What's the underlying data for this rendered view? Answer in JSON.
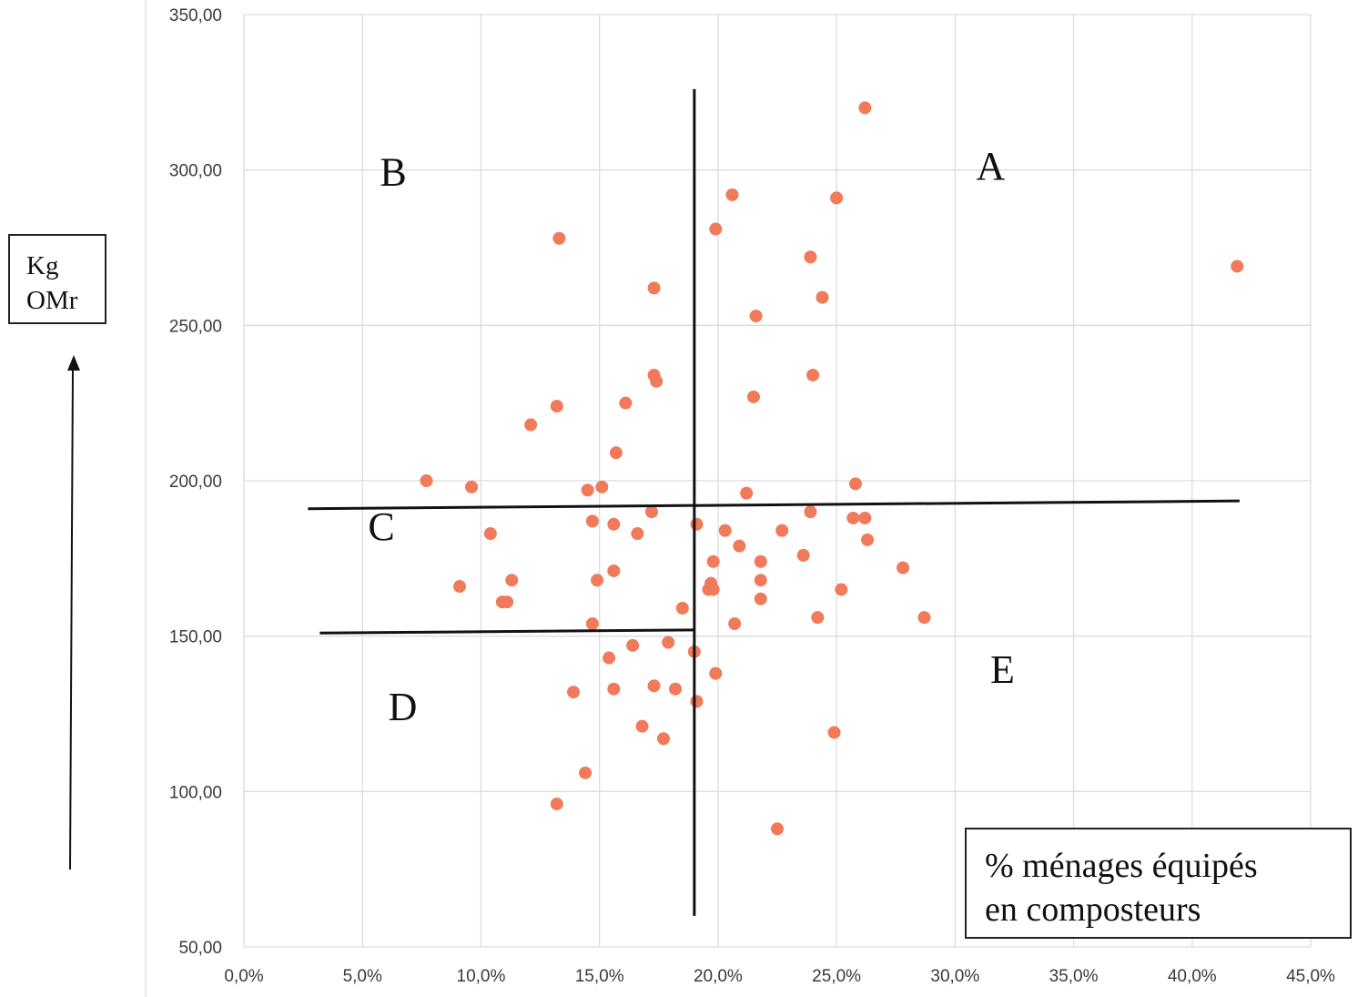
{
  "chart_data": {
    "type": "scatter",
    "title": "",
    "xlabel": [
      "% ménages équipés",
      "en composteurs"
    ],
    "ylabel": [
      "Kg",
      "OMr"
    ],
    "xlim": [
      0,
      45
    ],
    "ylim": [
      50,
      350
    ],
    "x_ticks": [
      {
        "value": 0,
        "label": "0,0%"
      },
      {
        "value": 5,
        "label": "5,0%"
      },
      {
        "value": 10,
        "label": "10,0%"
      },
      {
        "value": 15,
        "label": "15,0%"
      },
      {
        "value": 20,
        "label": "20,0%"
      },
      {
        "value": 25,
        "label": "25,0%"
      },
      {
        "value": 30,
        "label": "30,0%"
      },
      {
        "value": 35,
        "label": "35,0%"
      },
      {
        "value": 40,
        "label": "40,0%"
      },
      {
        "value": 45,
        "label": "45,0%"
      }
    ],
    "y_ticks": [
      {
        "value": 50,
        "label": "50,00"
      },
      {
        "value": 100,
        "label": "100,00"
      },
      {
        "value": 150,
        "label": "150,00"
      },
      {
        "value": 200,
        "label": "200,00"
      },
      {
        "value": 250,
        "label": "250,00"
      },
      {
        "value": 300,
        "label": "300,00"
      },
      {
        "value": 350,
        "label": "350,00"
      }
    ],
    "grid": true,
    "point_color": "#f07a5a",
    "points": [
      [
        26.2,
        320
      ],
      [
        20.6,
        292
      ],
      [
        25.0,
        291
      ],
      [
        19.9,
        281
      ],
      [
        13.3,
        278
      ],
      [
        23.9,
        272
      ],
      [
        41.9,
        269
      ],
      [
        24.4,
        259
      ],
      [
        17.3,
        262
      ],
      [
        21.6,
        253
      ],
      [
        17.3,
        234
      ],
      [
        17.4,
        232
      ],
      [
        24.0,
        234
      ],
      [
        21.5,
        227
      ],
      [
        13.2,
        224
      ],
      [
        16.1,
        225
      ],
      [
        12.1,
        218
      ],
      [
        15.7,
        209
      ],
      [
        7.7,
        200
      ],
      [
        9.6,
        198
      ],
      [
        15.1,
        198
      ],
      [
        14.5,
        197
      ],
      [
        21.2,
        196
      ],
      [
        25.8,
        199
      ],
      [
        23.9,
        190
      ],
      [
        17.2,
        190
      ],
      [
        14.7,
        187
      ],
      [
        15.6,
        186
      ],
      [
        19.1,
        186
      ],
      [
        25.7,
        188
      ],
      [
        26.2,
        188
      ],
      [
        10.4,
        183
      ],
      [
        16.6,
        183
      ],
      [
        20.3,
        184
      ],
      [
        22.7,
        184
      ],
      [
        26.3,
        181
      ],
      [
        20.9,
        179
      ],
      [
        23.6,
        176
      ],
      [
        19.8,
        174
      ],
      [
        21.8,
        174
      ],
      [
        15.6,
        171
      ],
      [
        27.8,
        172
      ],
      [
        11.3,
        168
      ],
      [
        14.9,
        168
      ],
      [
        21.8,
        168
      ],
      [
        19.7,
        167
      ],
      [
        9.1,
        166
      ],
      [
        19.6,
        165
      ],
      [
        19.8,
        165
      ],
      [
        25.2,
        165
      ],
      [
        10.9,
        161
      ],
      [
        11.1,
        161
      ],
      [
        21.8,
        162
      ],
      [
        18.5,
        159
      ],
      [
        24.2,
        156
      ],
      [
        28.7,
        156
      ],
      [
        14.7,
        154
      ],
      [
        20.7,
        154
      ],
      [
        17.9,
        148
      ],
      [
        16.4,
        147
      ],
      [
        15.4,
        143
      ],
      [
        19.0,
        145
      ],
      [
        19.9,
        138
      ],
      [
        13.9,
        132
      ],
      [
        15.6,
        133
      ],
      [
        17.3,
        134
      ],
      [
        18.2,
        133
      ],
      [
        19.1,
        129
      ],
      [
        16.8,
        121
      ],
      [
        17.7,
        117
      ],
      [
        24.9,
        119
      ],
      [
        14.4,
        106
      ],
      [
        13.2,
        96
      ],
      [
        22.5,
        88
      ]
    ],
    "zones": [
      {
        "label": "A",
        "x": 31.5,
        "y": 297
      },
      {
        "label": "B",
        "x": 6.3,
        "y": 295
      },
      {
        "label": "C",
        "x": 5.8,
        "y": 181
      },
      {
        "label": "D",
        "x": 6.7,
        "y": 123
      },
      {
        "label": "E",
        "x": 32.0,
        "y": 135
      }
    ],
    "dividers": [
      {
        "from": [
          19.0,
          326
        ],
        "to": [
          19.0,
          60
        ]
      },
      {
        "from": [
          2.7,
          191
        ],
        "to": [
          42.0,
          193.5
        ]
      },
      {
        "from": [
          3.2,
          151
        ],
        "to": [
          19.0,
          152
        ]
      }
    ]
  }
}
